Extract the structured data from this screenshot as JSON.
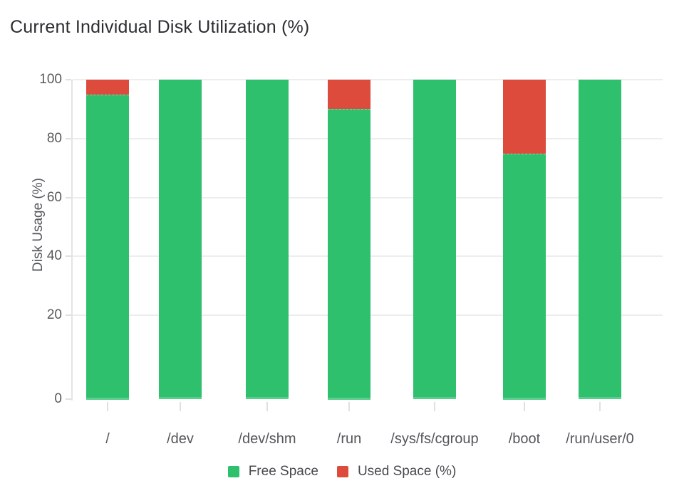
{
  "title": "Current Individual Disk Utilization (%)",
  "colors": {
    "free_space": "#2ec06d",
    "used_space": "#dd4b3d",
    "gridline": "#ededed",
    "axis_line": "#e4e4e4",
    "tick_text": "#595959",
    "label_text": "#54565a",
    "legend_text": "#47494d",
    "title_text": "#2b2d30"
  },
  "chart_data": {
    "type": "bar",
    "stacked": true,
    "title": "Current Individual Disk Utilization (%)",
    "xlabel": "",
    "ylabel": "Disk Usage (%)",
    "categories": [
      "/",
      "/dev",
      "/dev/shm",
      "/run",
      "/sys/fs/cgroup",
      "/boot",
      "/run/user/0"
    ],
    "series": [
      {
        "name": "Free Space",
        "color": "#2ec06d",
        "values": [
          95,
          100,
          100,
          90,
          100,
          75,
          100
        ]
      },
      {
        "name": "Used Space (%)",
        "color": "#dd4b3d",
        "values": [
          5,
          0,
          0,
          10,
          0,
          25,
          0
        ]
      }
    ],
    "ylim": [
      0,
      100
    ],
    "yticks": [
      0,
      20,
      40,
      60,
      80,
      100
    ],
    "grid": true,
    "legend_position": "bottom"
  },
  "legend": {
    "items": [
      {
        "label": "Free Space",
        "color": "#2ec06d"
      },
      {
        "label": "Used Space (%)",
        "color": "#dd4b3d"
      }
    ]
  }
}
